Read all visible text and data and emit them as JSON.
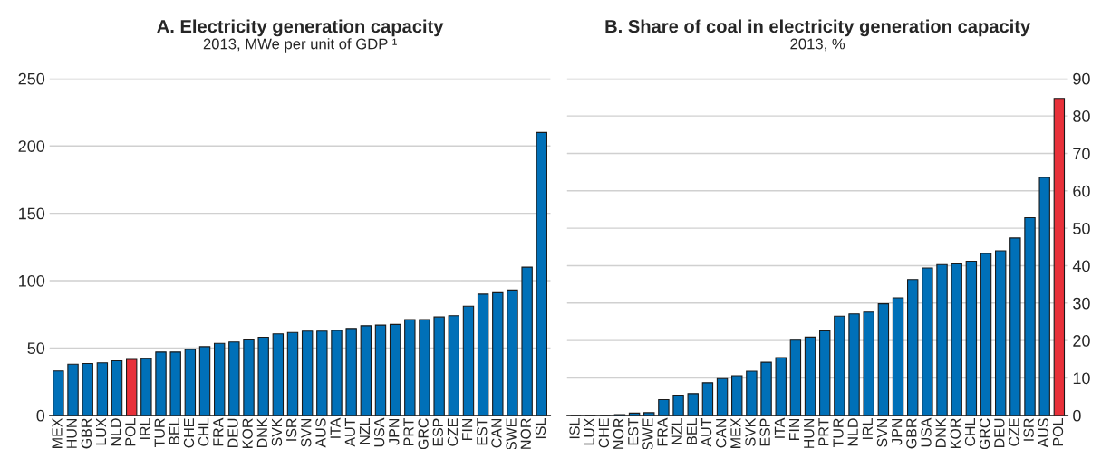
{
  "chart_data": [
    {
      "type": "bar",
      "title": "A. Electricity generation capacity",
      "subtitle": "2013, MWe per unit of GDP ¹",
      "categories": [
        "MEX",
        "HUN",
        "GBR",
        "LUX",
        "NLD",
        "POL",
        "IRL",
        "TUR",
        "BEL",
        "CHE",
        "CHL",
        "FRA",
        "DEU",
        "KOR",
        "DNK",
        "SVK",
        "ISR",
        "SVN",
        "AUS",
        "ITA",
        "AUT",
        "NZL",
        "USA",
        "JPN",
        "PRT",
        "GRC",
        "ESP",
        "CZE",
        "FIN",
        "EST",
        "CAN",
        "SWE",
        "NOR",
        "ISL"
      ],
      "values": [
        33,
        38,
        38.5,
        39,
        40.5,
        41.5,
        42,
        47,
        47,
        49,
        51,
        53.5,
        54.5,
        56,
        58,
        60.5,
        61.5,
        62.5,
        62.5,
        63,
        64.5,
        66.5,
        67,
        67.5,
        71,
        71,
        73,
        74,
        81,
        90,
        91,
        93,
        110,
        210
      ],
      "colors": [
        "#0070b8",
        "#0070b8",
        "#0070b8",
        "#0070b8",
        "#0070b8",
        "#e8313a",
        "#0070b8",
        "#0070b8",
        "#0070b8",
        "#0070b8",
        "#0070b8",
        "#0070b8",
        "#0070b8",
        "#0070b8",
        "#0070b8",
        "#0070b8",
        "#0070b8",
        "#0070b8",
        "#0070b8",
        "#0070b8",
        "#0070b8",
        "#0070b8",
        "#0070b8",
        "#0070b8",
        "#0070b8",
        "#0070b8",
        "#0070b8",
        "#0070b8",
        "#0070b8",
        "#0070b8",
        "#0070b8",
        "#0070b8",
        "#0070b8",
        "#0070b8"
      ],
      "ylim": [
        0,
        250
      ],
      "yticks": [
        0,
        50,
        100,
        150,
        200,
        250
      ],
      "grid": "y"
    },
    {
      "type": "bar",
      "title": "B. Share of coal in electricity generation capacity",
      "subtitle": "2013, %",
      "categories": [
        "ISL",
        "LUX",
        "CHE",
        "NOR",
        "EST",
        "SWE",
        "FRA",
        "NZL",
        "BEL",
        "AUT",
        "CAN",
        "MEX",
        "SVK",
        "ESP",
        "ITA",
        "FIN",
        "HUN",
        "PRT",
        "TUR",
        "NLD",
        "IRL",
        "SVN",
        "JPN",
        "GBR",
        "USA",
        "DNK",
        "KOR",
        "CHL",
        "GRC",
        "DEU",
        "CZE",
        "ISR",
        "AUS",
        "POL"
      ],
      "values": [
        0,
        0,
        0,
        0.2,
        0.6,
        0.7,
        4.2,
        5.4,
        5.8,
        8.7,
        9.8,
        10.6,
        11.8,
        14.2,
        15.4,
        20.1,
        20.9,
        22.6,
        26.5,
        27.1,
        27.6,
        29.8,
        31.4,
        36.3,
        39.4,
        40.3,
        40.5,
        41.2,
        43.3,
        44,
        47.4,
        52.8,
        63.6,
        84.7
      ],
      "colors": [
        "#0070b8",
        "#0070b8",
        "#0070b8",
        "#0070b8",
        "#0070b8",
        "#0070b8",
        "#0070b8",
        "#0070b8",
        "#0070b8",
        "#0070b8",
        "#0070b8",
        "#0070b8",
        "#0070b8",
        "#0070b8",
        "#0070b8",
        "#0070b8",
        "#0070b8",
        "#0070b8",
        "#0070b8",
        "#0070b8",
        "#0070b8",
        "#0070b8",
        "#0070b8",
        "#0070b8",
        "#0070b8",
        "#0070b8",
        "#0070b8",
        "#0070b8",
        "#0070b8",
        "#0070b8",
        "#0070b8",
        "#0070b8",
        "#0070b8",
        "#e8313a"
      ],
      "ylim": [
        0,
        90
      ],
      "yticks": [
        0,
        10,
        20,
        30,
        40,
        50,
        60,
        70,
        80,
        90
      ],
      "grid": "y"
    }
  ]
}
